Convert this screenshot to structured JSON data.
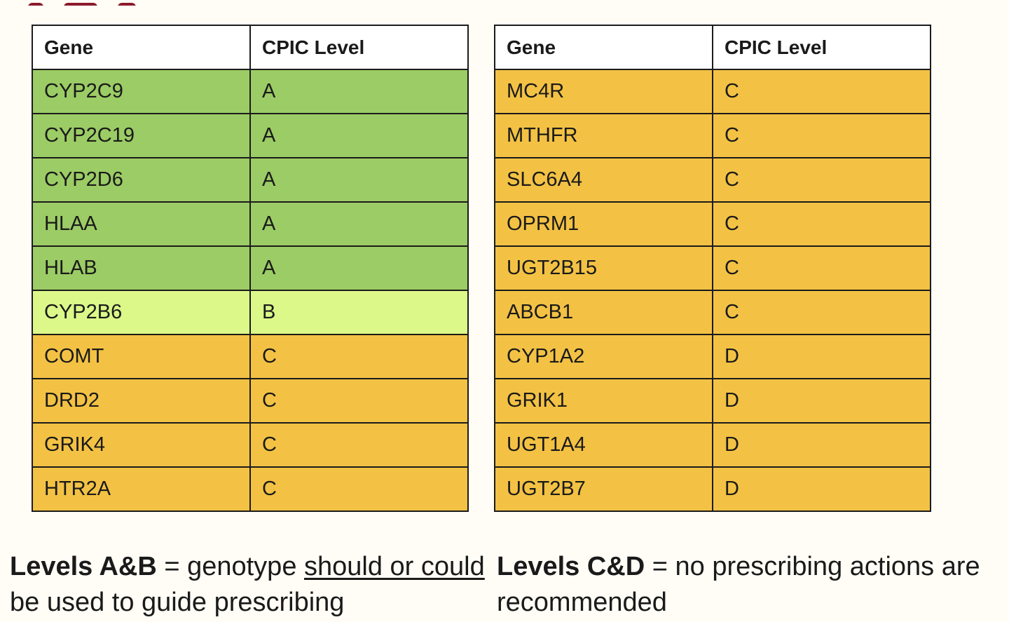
{
  "level_colors": {
    "A": "#9ccc65",
    "B": "#dbf889",
    "C": "#f3c244",
    "D": "#f3c244"
  },
  "tables": [
    {
      "headers": [
        "Gene",
        "CPIC Level"
      ],
      "rows": [
        {
          "gene": "CYP2C9",
          "level": "A"
        },
        {
          "gene": "CYP2C19",
          "level": "A"
        },
        {
          "gene": "CYP2D6",
          "level": "A"
        },
        {
          "gene": "HLAA",
          "level": "A"
        },
        {
          "gene": "HLAB",
          "level": "A"
        },
        {
          "gene": "CYP2B6",
          "level": "B"
        },
        {
          "gene": "COMT",
          "level": "C"
        },
        {
          "gene": "DRD2",
          "level": "C"
        },
        {
          "gene": "GRIK4",
          "level": "C"
        },
        {
          "gene": "HTR2A",
          "level": "C"
        }
      ]
    },
    {
      "headers": [
        "Gene",
        "CPIC Level"
      ],
      "rows": [
        {
          "gene": "MC4R",
          "level": "C"
        },
        {
          "gene": "MTHFR",
          "level": "C"
        },
        {
          "gene": "SLC6A4",
          "level": "C"
        },
        {
          "gene": "OPRM1",
          "level": "C"
        },
        {
          "gene": "UGT2B15",
          "level": "C"
        },
        {
          "gene": "ABCB1",
          "level": "C"
        },
        {
          "gene": "CYP1A2",
          "level": "D"
        },
        {
          "gene": "GRIK1",
          "level": "D"
        },
        {
          "gene": "UGT1A4",
          "level": "D"
        },
        {
          "gene": "UGT2B7",
          "level": "D"
        }
      ]
    }
  ],
  "captions": {
    "left": {
      "bold": "Levels A&B",
      "text1": " = genotype ",
      "underlined": "should or could",
      "text2": " be used to guide prescribing"
    },
    "right": {
      "bold": "Levels C&D",
      "text1": " = no prescribing actions are recommended"
    }
  }
}
